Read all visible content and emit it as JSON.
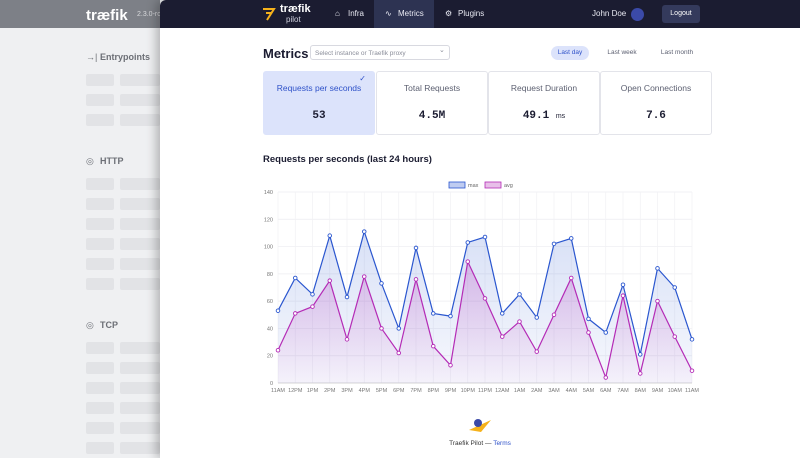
{
  "sidebar": {
    "brand": "træfik",
    "version": "2.3.0-rc",
    "sections": [
      "Entrypoints",
      "HTTP",
      "TCP"
    ]
  },
  "nav": {
    "brand": "træfik",
    "brand_sub": "pilot",
    "links": [
      "Infra",
      "Metrics",
      "Plugins"
    ],
    "user": "John Doe",
    "logout": "Logout"
  },
  "header": {
    "title": "Metrics",
    "select_placeholder": "Select instance or Traefik proxy",
    "ranges": [
      "Last day",
      "Last week",
      "Last month"
    ]
  },
  "cards": [
    {
      "label": "Requests per seconds",
      "value": "53"
    },
    {
      "label": "Total Requests",
      "value": "4.5M"
    },
    {
      "label": "Request Duration",
      "value": "49.1",
      "unit": "ms"
    },
    {
      "label": "Open Connections",
      "value": "7.6"
    }
  ],
  "chart_data": {
    "type": "line",
    "title": "Requests per seconds (last 24 hours)",
    "categories": [
      "11AM",
      "12PM",
      "1PM",
      "2PM",
      "3PM",
      "4PM",
      "5PM",
      "6PM",
      "7PM",
      "8PM",
      "9PM",
      "10PM",
      "11PM",
      "12AM",
      "1AM",
      "2AM",
      "3AM",
      "4AM",
      "5AM",
      "6AM",
      "7AM",
      "8AM",
      "9AM",
      "10AM",
      "11AM"
    ],
    "series": [
      {
        "name": "max",
        "color": "#2a56cf",
        "values": [
          53,
          77,
          65,
          108,
          63,
          111,
          73,
          40,
          99,
          51,
          49,
          103,
          107,
          51,
          65,
          48,
          102,
          106,
          47,
          37,
          72,
          21,
          84,
          70,
          32
        ]
      },
      {
        "name": "avg",
        "color": "#b42bb6",
        "values": [
          24,
          51,
          56,
          75,
          32,
          78,
          40,
          22,
          76,
          27,
          13,
          89,
          62,
          34,
          45,
          23,
          50,
          77,
          37,
          4,
          64,
          7,
          60,
          34,
          9
        ]
      }
    ],
    "ylim": [
      0,
      140
    ],
    "yticks": [
      0,
      20,
      40,
      60,
      80,
      100,
      120,
      140
    ],
    "grid": true,
    "legend": "top"
  },
  "footer": {
    "text": "Traefik Pilot —",
    "link": "Terms"
  }
}
